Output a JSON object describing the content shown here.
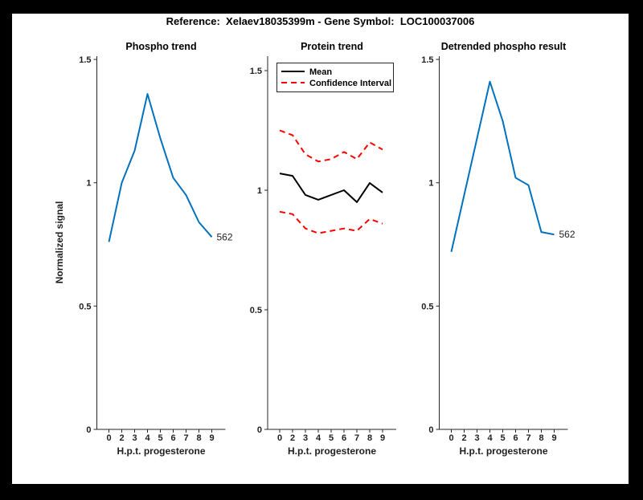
{
  "figure": {
    "title": "Reference:  Xelaev18035399m - Gene Symbol:  LOC100037006"
  },
  "colors": {
    "page_bg": "#000000",
    "figure_bg": "#ffffff",
    "line_blue": "#0072BD",
    "ci_red": "#ff0000",
    "mean_black": "#000000",
    "axis": "#262626"
  },
  "legend": {
    "items": [
      {
        "label": "Mean",
        "style": "solid",
        "color_key": "mean_black"
      },
      {
        "label": "Confidence Interval",
        "style": "dashed",
        "color_key": "ci_red"
      }
    ]
  },
  "chart_data": [
    {
      "type": "line",
      "title": "Phospho trend",
      "xlabel": "H.p.t. progesterone",
      "ylabel": "Normalized signal",
      "x_tick_labels": [
        "0",
        "2",
        "3",
        "4",
        "5",
        "6",
        "7",
        "8",
        "9"
      ],
      "y_ticks": [
        0,
        0.5,
        1,
        1.5
      ],
      "y_tick_labels": [
        "0",
        "0.5",
        "1",
        "1.5"
      ],
      "ylim": [
        0,
        1.5
      ],
      "grid": false,
      "series": [
        {
          "name": "phospho-signal",
          "color": "line_blue",
          "style": "solid",
          "values": [
            0.76,
            1.0,
            1.13,
            1.36,
            1.18,
            1.02,
            0.95,
            0.84,
            0.78
          ],
          "end_label": "562"
        }
      ]
    },
    {
      "type": "line",
      "title": "Protein trend",
      "xlabel": "H.p.t. progesterone",
      "ylabel": "",
      "x_tick_labels": [
        "0",
        "2",
        "3",
        "4",
        "5",
        "6",
        "7",
        "8",
        "9"
      ],
      "y_ticks": [
        0,
        0.5,
        1,
        1.5
      ],
      "y_tick_labels": [
        "0",
        "0.5",
        "1",
        "1.5"
      ],
      "ylim": [
        0,
        1.5
      ],
      "grid": false,
      "legend_position": "top-left",
      "series": [
        {
          "name": "confidence-interval-upper",
          "color": "ci_red",
          "style": "dashed",
          "values": [
            1.25,
            1.23,
            1.15,
            1.12,
            1.13,
            1.16,
            1.13,
            1.2,
            1.17
          ]
        },
        {
          "name": "confidence-interval-lower",
          "color": "ci_red",
          "style": "dashed",
          "values": [
            0.91,
            0.9,
            0.84,
            0.82,
            0.83,
            0.84,
            0.83,
            0.88,
            0.86
          ]
        },
        {
          "name": "protein-mean",
          "color": "mean_black",
          "style": "solid",
          "values": [
            1.07,
            1.06,
            0.98,
            0.96,
            0.98,
            1.0,
            0.95,
            1.03,
            0.99
          ]
        }
      ]
    },
    {
      "type": "line",
      "title": "Detrended phospho result",
      "xlabel": "H.p.t. progesterone",
      "ylabel": "",
      "x_tick_labels": [
        "0",
        "2",
        "3",
        "4",
        "5",
        "6",
        "7",
        "8",
        "9"
      ],
      "y_ticks": [
        0,
        0.5,
        1,
        1.5
      ],
      "y_tick_labels": [
        "0",
        "0.5",
        "1",
        "1.5"
      ],
      "ylim": [
        0,
        1.5
      ],
      "grid": false,
      "series": [
        {
          "name": "detrended-phospho-signal",
          "color": "line_blue",
          "style": "solid",
          "values": [
            0.72,
            0.95,
            1.18,
            1.41,
            1.25,
            1.02,
            0.99,
            0.8,
            0.79
          ],
          "end_label": "562"
        }
      ]
    }
  ]
}
